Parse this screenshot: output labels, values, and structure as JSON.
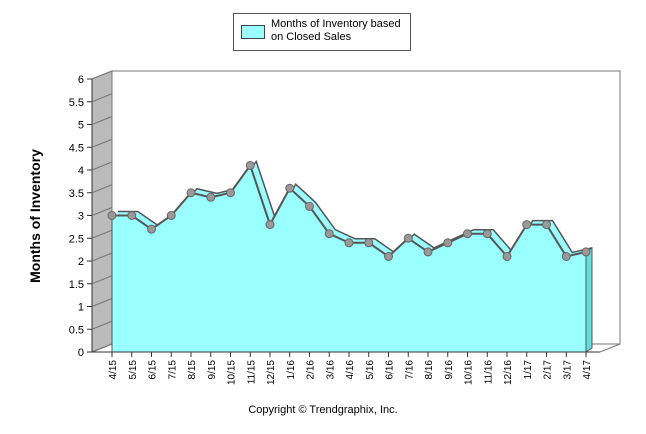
{
  "colors": {
    "fill": "#99ffff",
    "line": "#555555",
    "marker": "#999999",
    "frame": "#777777",
    "grid": "#cccccc"
  },
  "legend": {
    "label": "Months of Inventory based on Closed Sales"
  },
  "footer": {
    "copyright": "Copyright © Trendgraphix, Inc."
  },
  "chart_data": {
    "type": "area",
    "title": "",
    "xlabel": "",
    "ylabel": "Months of Inventory",
    "ylim": [
      0,
      6
    ],
    "yticks": [
      "0",
      "0.5",
      "1",
      "1.5",
      "2",
      "2.5",
      "3",
      "3.5",
      "4",
      "4.5",
      "5",
      "5.5",
      "6"
    ],
    "grid": false,
    "legend_position": "top-center",
    "categories": [
      "4/15",
      "5/15",
      "6/15",
      "7/15",
      "8/15",
      "9/15",
      "10/15",
      "11/15",
      "12/15",
      "1/16",
      "2/16",
      "3/16",
      "4/16",
      "5/16",
      "6/16",
      "7/16",
      "8/16",
      "9/16",
      "10/16",
      "11/16",
      "12/16",
      "1/17",
      "2/17",
      "3/17",
      "4/17"
    ],
    "series": [
      {
        "name": "Months of Inventory based on Closed Sales",
        "values": [
          3.0,
          3.0,
          2.7,
          3.0,
          3.5,
          3.4,
          3.5,
          4.1,
          2.8,
          3.6,
          3.2,
          2.6,
          2.4,
          2.4,
          2.1,
          2.5,
          2.2,
          2.4,
          2.6,
          2.6,
          2.1,
          2.8,
          2.8,
          2.1,
          2.2
        ]
      }
    ]
  }
}
